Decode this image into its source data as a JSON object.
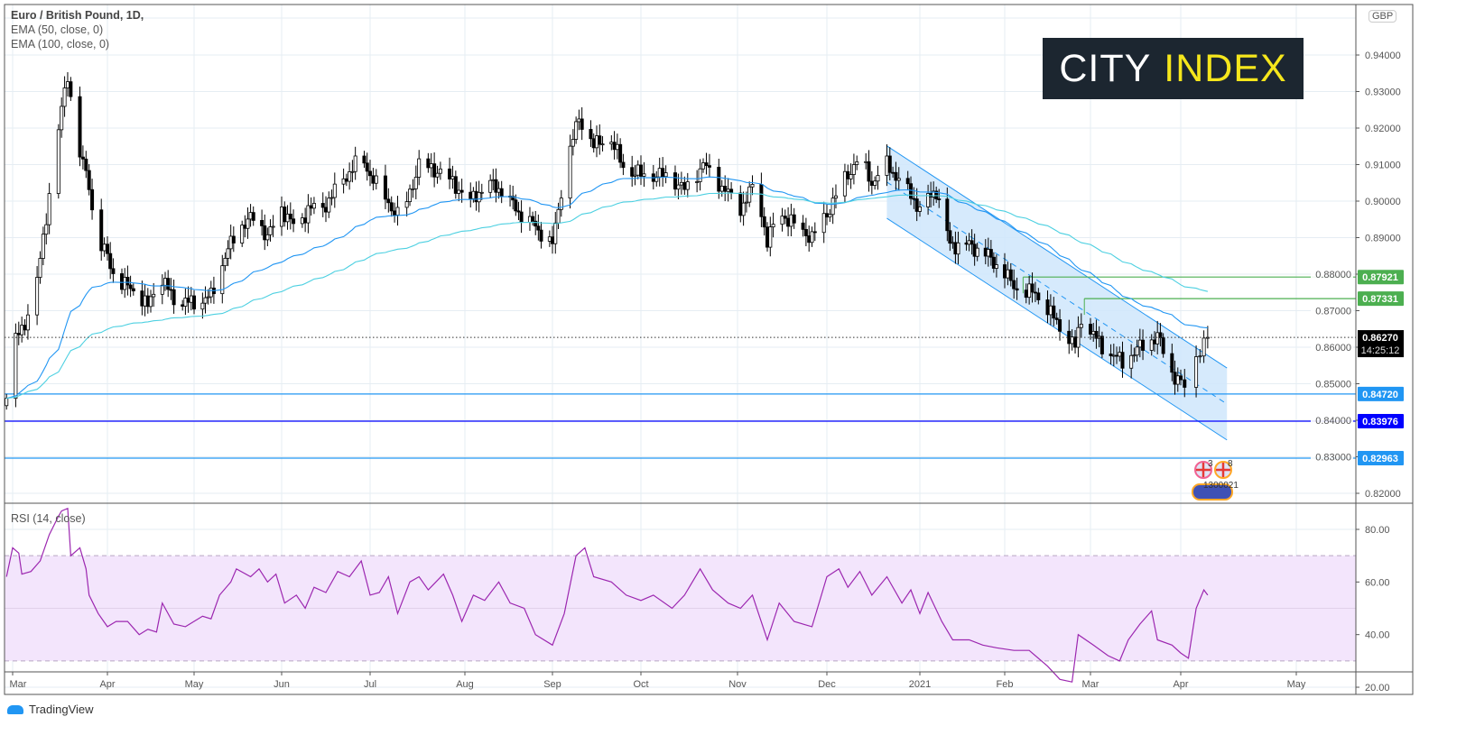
{
  "legend": {
    "symbol": "Euro / British Pound, 1D,",
    "ema50": "EMA (50, close, 0)",
    "ema100": "EMA (100, close, 0)"
  },
  "rsi_title": "RSI (14, close)",
  "logo": {
    "part1": "CITY",
    "part2": "INDEX"
  },
  "currency_badge": "GBP",
  "watermark": "TradingView",
  "events": {
    "label_a": "3",
    "label_b": "8",
    "label_c": "1300021"
  },
  "chart_data": [
    {
      "type": "candlestick",
      "title": "Euro / British Pound, 1D",
      "currency": "GBP",
      "ylim": [
        0.815,
        0.952
      ],
      "y_ticks": [
        "0.94000",
        "0.93000",
        "0.92000",
        "0.91000",
        "0.90000",
        "0.89000",
        "0.88000",
        "0.87000",
        "0.86000",
        "0.85000",
        "0.84000",
        "0.83000",
        "0.82000"
      ],
      "x_ticks": [
        {
          "date": "2020-03-01",
          "label": "Mar"
        },
        {
          "date": "2020-04-01",
          "label": "Apr"
        },
        {
          "date": "2020-05-01",
          "label": "May"
        },
        {
          "date": "2020-06-01",
          "label": "Jun"
        },
        {
          "date": "2020-07-01",
          "label": "Jul"
        },
        {
          "date": "2020-08-01",
          "label": "Aug"
        },
        {
          "date": "2020-09-01",
          "label": "Sep"
        },
        {
          "date": "2020-10-01",
          "label": "Oct"
        },
        {
          "date": "2020-11-01",
          "label": "Nov"
        },
        {
          "date": "2020-12-01",
          "label": "Dec"
        },
        {
          "date": "2021-01-01",
          "label": "2021"
        },
        {
          "date": "2021-02-01",
          "label": "Feb"
        },
        {
          "date": "2021-03-01",
          "label": "Mar"
        },
        {
          "date": "2021-04-01",
          "label": "Apr"
        },
        {
          "date": "2021-05-01",
          "label": "May"
        }
      ],
      "close_keypoints": [
        [
          "2020-02-28",
          0.846
        ],
        [
          "2020-03-02",
          0.862
        ],
        [
          "2020-03-08",
          0.872
        ],
        [
          "2020-03-12",
          0.896
        ],
        [
          "2020-03-17",
          0.925
        ],
        [
          "2020-03-19",
          0.935
        ],
        [
          "2020-03-22",
          0.915
        ],
        [
          "2020-03-26",
          0.905
        ],
        [
          "2020-03-28",
          0.89
        ],
        [
          "2020-04-01",
          0.885
        ],
        [
          "2020-04-04",
          0.878
        ],
        [
          "2020-04-10",
          0.876
        ],
        [
          "2020-04-15",
          0.871
        ],
        [
          "2020-04-19",
          0.88
        ],
        [
          "2020-04-24",
          0.873
        ],
        [
          "2020-05-01",
          0.872
        ],
        [
          "2020-05-07",
          0.874
        ],
        [
          "2020-05-12",
          0.885
        ],
        [
          "2020-05-17",
          0.893
        ],
        [
          "2020-05-23",
          0.896
        ],
        [
          "2020-05-27",
          0.89
        ],
        [
          "2020-06-01",
          0.898
        ],
        [
          "2020-06-06",
          0.892
        ],
        [
          "2020-06-10",
          0.898
        ],
        [
          "2020-06-15",
          0.898
        ],
        [
          "2020-06-21",
          0.905
        ],
        [
          "2020-06-28",
          0.912
        ],
        [
          "2020-07-04",
          0.903
        ],
        [
          "2020-07-11",
          0.895
        ],
        [
          "2020-07-17",
          0.91
        ],
        [
          "2020-07-24",
          0.908
        ],
        [
          "2020-07-28",
          0.905
        ],
        [
          "2020-08-03",
          0.9
        ],
        [
          "2020-08-09",
          0.905
        ],
        [
          "2020-08-14",
          0.903
        ],
        [
          "2020-08-20",
          0.897
        ],
        [
          "2020-08-26",
          0.893
        ],
        [
          "2020-09-01",
          0.888
        ],
        [
          "2020-09-05",
          0.908
        ],
        [
          "2020-09-10",
          0.923
        ],
        [
          "2020-09-15",
          0.915
        ],
        [
          "2020-09-20",
          0.918
        ],
        [
          "2020-09-26",
          0.908
        ],
        [
          "2020-10-04",
          0.907
        ],
        [
          "2020-10-10",
          0.907
        ],
        [
          "2020-10-15",
          0.903
        ],
        [
          "2020-10-21",
          0.91
        ],
        [
          "2020-10-28",
          0.903
        ],
        [
          "2020-11-02",
          0.898
        ],
        [
          "2020-11-07",
          0.905
        ],
        [
          "2020-11-11",
          0.889
        ],
        [
          "2020-11-15",
          0.897
        ],
        [
          "2020-11-21",
          0.893
        ],
        [
          "2020-11-26",
          0.89
        ],
        [
          "2020-12-02",
          0.898
        ],
        [
          "2020-12-06",
          0.905
        ],
        [
          "2020-12-12",
          0.912
        ],
        [
          "2020-12-16",
          0.905
        ],
        [
          "2020-12-21",
          0.91
        ],
        [
          "2020-12-26",
          0.905
        ],
        [
          "2021-01-01",
          0.898
        ],
        [
          "2021-01-07",
          0.903
        ],
        [
          "2021-01-12",
          0.888
        ],
        [
          "2021-01-19",
          0.888
        ],
        [
          "2021-01-26",
          0.885
        ],
        [
          "2021-02-01",
          0.88
        ],
        [
          "2021-02-06",
          0.875
        ],
        [
          "2021-02-11",
          0.875
        ],
        [
          "2021-02-17",
          0.868
        ],
        [
          "2021-02-24",
          0.86
        ],
        [
          "2021-02-26",
          0.868
        ],
        [
          "2021-03-05",
          0.86
        ],
        [
          "2021-03-12",
          0.856
        ],
        [
          "2021-03-18",
          0.86
        ],
        [
          "2021-03-24",
          0.863
        ],
        [
          "2021-03-29",
          0.853
        ],
        [
          "2021-04-02",
          0.849
        ],
        [
          "2021-04-06",
          0.86
        ],
        [
          "2021-04-08",
          0.8627
        ]
      ],
      "indicators": [
        {
          "name": "EMA (50, close, 0)",
          "period": 50,
          "color": "#2196f3"
        },
        {
          "name": "EMA (100, close, 0)",
          "period": 100,
          "color": "#4dd0e1"
        }
      ],
      "current_price": {
        "value": "0.86270",
        "countdown": "14:25:12"
      },
      "horizontal_levels": [
        {
          "value": "0.87921",
          "color": "#4caf50",
          "from": "2021-02-07"
        },
        {
          "value": "0.87331",
          "color": "#4caf50",
          "from": "2021-02-27"
        },
        {
          "value": "0.84720",
          "color": "#2196f3",
          "from": null
        },
        {
          "value": "0.83976",
          "color": "#0000ff",
          "from": null
        },
        {
          "value": "0.82963",
          "color": "#2196f3",
          "from": null
        }
      ],
      "channel": {
        "start_date": "2020-12-21",
        "end_date": "2021-04-13",
        "upper": [
          0.9151,
          0.8543
        ],
        "lower": [
          0.8953,
          0.8346
        ],
        "fill": "#cfe6fb",
        "line": "#2196f3"
      }
    },
    {
      "type": "line",
      "title": "RSI (14, close)",
      "ylim": [
        17,
        93
      ],
      "y_ticks": [
        "80.00",
        "60.00",
        "40.00",
        "20.00"
      ],
      "band": [
        30,
        70
      ],
      "color": "#9c27b0",
      "points": [
        [
          "2020-02-28",
          62
        ],
        [
          "2020-03-01",
          73
        ],
        [
          "2020-03-03",
          71
        ],
        [
          "2020-03-04",
          63
        ],
        [
          "2020-03-07",
          64
        ],
        [
          "2020-03-10",
          68
        ],
        [
          "2020-03-13",
          78
        ],
        [
          "2020-03-16",
          85
        ],
        [
          "2020-03-17",
          87
        ],
        [
          "2020-03-19",
          88
        ],
        [
          "2020-03-20",
          70
        ],
        [
          "2020-03-23",
          73
        ],
        [
          "2020-03-25",
          65
        ],
        [
          "2020-03-26",
          55
        ],
        [
          "2020-03-29",
          48
        ],
        [
          "2020-04-01",
          43
        ],
        [
          "2020-04-04",
          45
        ],
        [
          "2020-04-08",
          45
        ],
        [
          "2020-04-12",
          40
        ],
        [
          "2020-04-15",
          42
        ],
        [
          "2020-04-18",
          41
        ],
        [
          "2020-04-20",
          52
        ],
        [
          "2020-04-24",
          44
        ],
        [
          "2020-04-28",
          43
        ],
        [
          "2020-05-04",
          47
        ],
        [
          "2020-05-07",
          46
        ],
        [
          "2020-05-10",
          55
        ],
        [
          "2020-05-14",
          60
        ],
        [
          "2020-05-16",
          65
        ],
        [
          "2020-05-21",
          62
        ],
        [
          "2020-05-24",
          65
        ],
        [
          "2020-05-27",
          60
        ],
        [
          "2020-05-30",
          63
        ],
        [
          "2020-06-02",
          52
        ],
        [
          "2020-06-06",
          55
        ],
        [
          "2020-06-09",
          50
        ],
        [
          "2020-06-12",
          58
        ],
        [
          "2020-06-16",
          56
        ],
        [
          "2020-06-20",
          64
        ],
        [
          "2020-06-24",
          62
        ],
        [
          "2020-06-28",
          68
        ],
        [
          "2020-07-01",
          55
        ],
        [
          "2020-07-04",
          56
        ],
        [
          "2020-07-07",
          62
        ],
        [
          "2020-07-10",
          48
        ],
        [
          "2020-07-14",
          60
        ],
        [
          "2020-07-17",
          62
        ],
        [
          "2020-07-20",
          57
        ],
        [
          "2020-07-25",
          63
        ],
        [
          "2020-07-28",
          55
        ],
        [
          "2020-07-31",
          45
        ],
        [
          "2020-08-04",
          55
        ],
        [
          "2020-08-08",
          53
        ],
        [
          "2020-08-13",
          60
        ],
        [
          "2020-08-17",
          52
        ],
        [
          "2020-08-22",
          50
        ],
        [
          "2020-08-26",
          40
        ],
        [
          "2020-09-01",
          36
        ],
        [
          "2020-09-05",
          48
        ],
        [
          "2020-09-09",
          70
        ],
        [
          "2020-09-12",
          73
        ],
        [
          "2020-09-15",
          62
        ],
        [
          "2020-09-21",
          60
        ],
        [
          "2020-09-26",
          55
        ],
        [
          "2020-10-01",
          53
        ],
        [
          "2020-10-05",
          55
        ],
        [
          "2020-10-11",
          50
        ],
        [
          "2020-10-15",
          55
        ],
        [
          "2020-10-20",
          65
        ],
        [
          "2020-10-24",
          57
        ],
        [
          "2020-10-29",
          52
        ],
        [
          "2020-11-02",
          50
        ],
        [
          "2020-11-06",
          55
        ],
        [
          "2020-11-11",
          38
        ],
        [
          "2020-11-15",
          52
        ],
        [
          "2020-11-20",
          45
        ],
        [
          "2020-11-26",
          43
        ],
        [
          "2020-12-01",
          62
        ],
        [
          "2020-12-05",
          65
        ],
        [
          "2020-12-08",
          58
        ],
        [
          "2020-12-12",
          64
        ],
        [
          "2020-12-16",
          55
        ],
        [
          "2020-12-21",
          62
        ],
        [
          "2020-12-26",
          52
        ],
        [
          "2020-12-29",
          57
        ],
        [
          "2021-01-01",
          48
        ],
        [
          "2021-01-04",
          56
        ],
        [
          "2021-01-09",
          45
        ],
        [
          "2021-01-13",
          38
        ],
        [
          "2021-01-19",
          38
        ],
        [
          "2021-01-24",
          36
        ],
        [
          "2021-01-29",
          35
        ],
        [
          "2021-02-04",
          34
        ],
        [
          "2021-02-09",
          34
        ],
        [
          "2021-02-15",
          28
        ],
        [
          "2021-02-19",
          23
        ],
        [
          "2021-02-23",
          22
        ],
        [
          "2021-02-25",
          40
        ],
        [
          "2021-03-02",
          36
        ],
        [
          "2021-03-07",
          32
        ],
        [
          "2021-03-11",
          30
        ],
        [
          "2021-03-14",
          38
        ],
        [
          "2021-03-18",
          44
        ],
        [
          "2021-03-22",
          49
        ],
        [
          "2021-03-24",
          38
        ],
        [
          "2021-03-29",
          36
        ],
        [
          "2021-04-01",
          33
        ],
        [
          "2021-04-03",
          31
        ],
        [
          "2021-04-05",
          50
        ],
        [
          "2021-04-07",
          57
        ],
        [
          "2021-04-08",
          55
        ]
      ]
    }
  ]
}
